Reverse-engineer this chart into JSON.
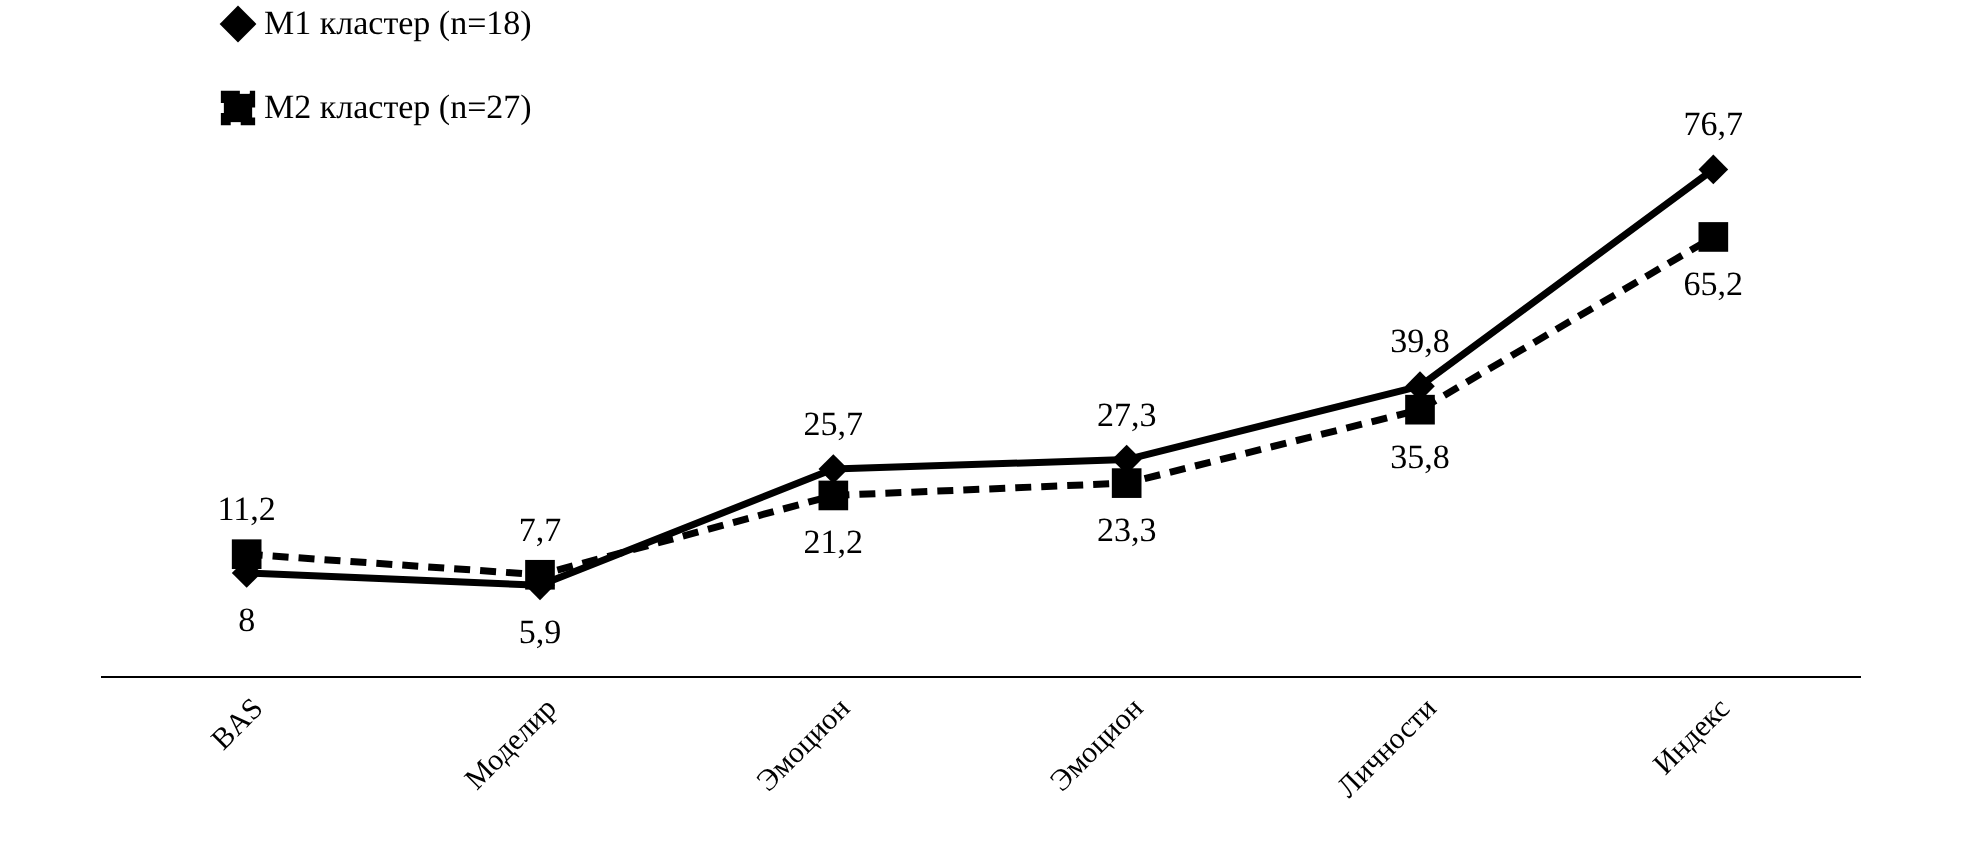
{
  "chart_data": {
    "type": "line",
    "categories": [
      "BAS",
      "Моделир",
      "Эмоцион",
      "Эмоцион",
      "Личности",
      "Индекс"
    ],
    "series": [
      {
        "name": "М1 кластер (n=18)",
        "color": "#000000",
        "marker": "diamond",
        "line_style": "solid",
        "values": [
          8,
          5.9,
          25.7,
          27.3,
          39.8,
          76.7
        ],
        "value_labels": [
          "8",
          "5,9",
          "25,7",
          "27,3",
          "39,8",
          "76,7"
        ]
      },
      {
        "name": "М2 кластер (n=27)",
        "color": "#000000",
        "marker": "square",
        "line_style": "dashed",
        "values": [
          11.2,
          7.7,
          21.2,
          23.3,
          35.8,
          65.2
        ],
        "value_labels": [
          "11,2",
          "7,7",
          "21,2",
          "23,3",
          "35,8",
          "65,2"
        ]
      }
    ],
    "legend": "top left"
  }
}
